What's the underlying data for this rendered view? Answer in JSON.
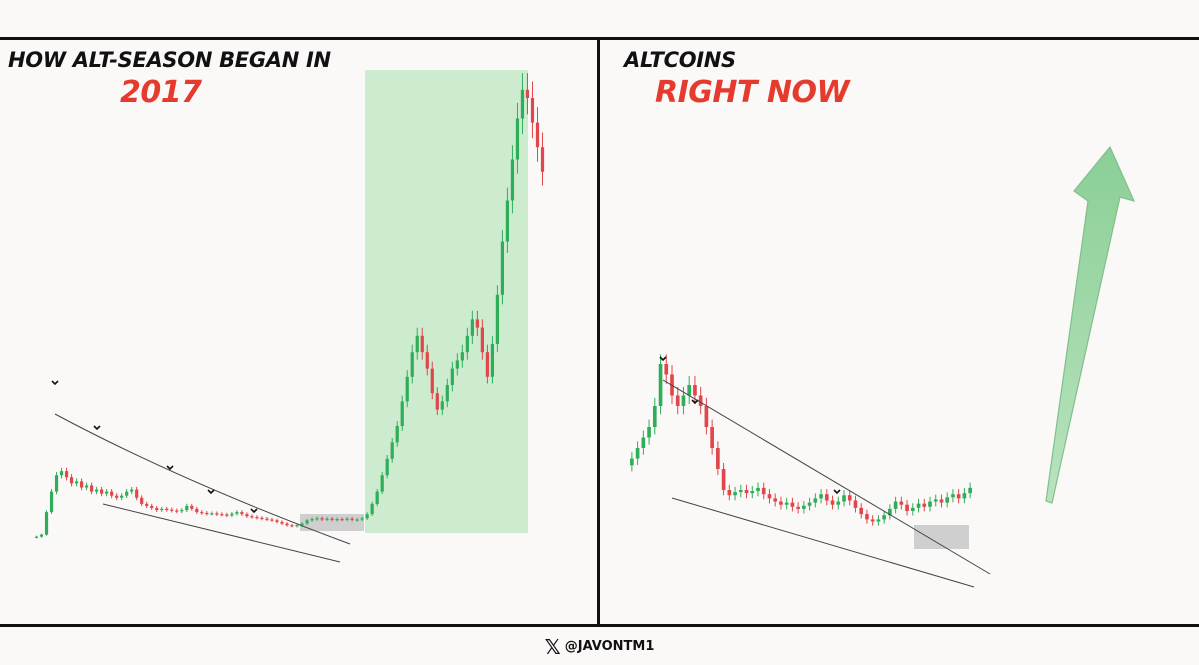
{
  "watermark": {
    "handle": "@JAVONTM1",
    "icon": "x-logo-icon"
  },
  "colors": {
    "up": "#2fae5a",
    "down": "#e0464a",
    "highlight_green": "#cdebcf",
    "consolidation": "#c8c8c8",
    "title_red": "#e53b2e"
  },
  "chart_data": [
    {
      "type": "candlestick",
      "title": "HOW ALT-SEASON BEGAN IN",
      "subtitle": "2017",
      "series": [
        {
          "values": [
            3,
            3.5,
            9,
            14,
            18,
            19,
            17.5,
            16,
            16.5,
            15,
            15.5,
            14,
            14.5,
            13.5,
            14,
            13,
            12.5,
            13,
            14,
            14.5,
            12.5,
            11,
            10.5,
            10,
            9.5,
            9.8,
            9.6,
            9.4,
            9.2,
            9.5,
            10.5,
            9.8,
            9,
            8.8,
            8.6,
            8.7,
            8.5,
            8.4,
            8.2,
            8.6,
            9,
            8.5,
            8,
            7.8,
            7.6,
            7.4,
            7.2,
            7,
            6.6,
            6.2,
            5.8,
            5.6,
            5.8,
            6.2,
            7,
            7.3,
            7.5,
            7.2,
            7.4,
            7.1,
            7.3,
            7.2,
            7.4,
            7.1,
            7.2,
            7.5,
            8.5,
            11,
            14,
            18,
            22,
            26,
            30,
            36,
            42,
            48,
            52,
            48,
            44,
            38,
            34,
            36,
            40,
            44,
            46,
            48,
            52,
            56,
            54,
            48,
            42,
            50,
            62,
            75,
            85,
            95,
            105,
            112,
            110,
            104,
            98,
            92
          ]
        }
      ],
      "annotations": [
        "swing-high markers",
        "descending trendlines",
        "consolidation box",
        "breakout zone"
      ]
    },
    {
      "type": "candlestick",
      "title": "ALTCOINS",
      "subtitle": "RIGHT NOW",
      "series": [
        {
          "values": [
            13,
            14,
            15,
            16,
            18,
            22,
            21,
            19,
            18,
            19,
            20,
            19,
            18,
            16,
            14,
            12,
            10,
            9.5,
            9.8,
            10,
            9.7,
            9.9,
            10.2,
            9.6,
            9.2,
            8.9,
            8.6,
            8.8,
            8.4,
            8.2,
            8.5,
            8.8,
            9.2,
            9.6,
            9.0,
            8.6,
            8.9,
            9.5,
            9.0,
            8.3,
            7.7,
            7.2,
            7.0,
            7.2,
            7.6,
            8.2,
            8.9,
            8.6,
            8.0,
            8.3,
            8.7,
            8.4,
            8.9,
            9.1,
            8.8,
            9.3,
            9.6,
            9.2,
            9.7,
            10.2
          ]
        }
      ],
      "annotations": [
        "swing-high markers",
        "descending trendlines",
        "consolidation box",
        "up arrow"
      ]
    }
  ]
}
